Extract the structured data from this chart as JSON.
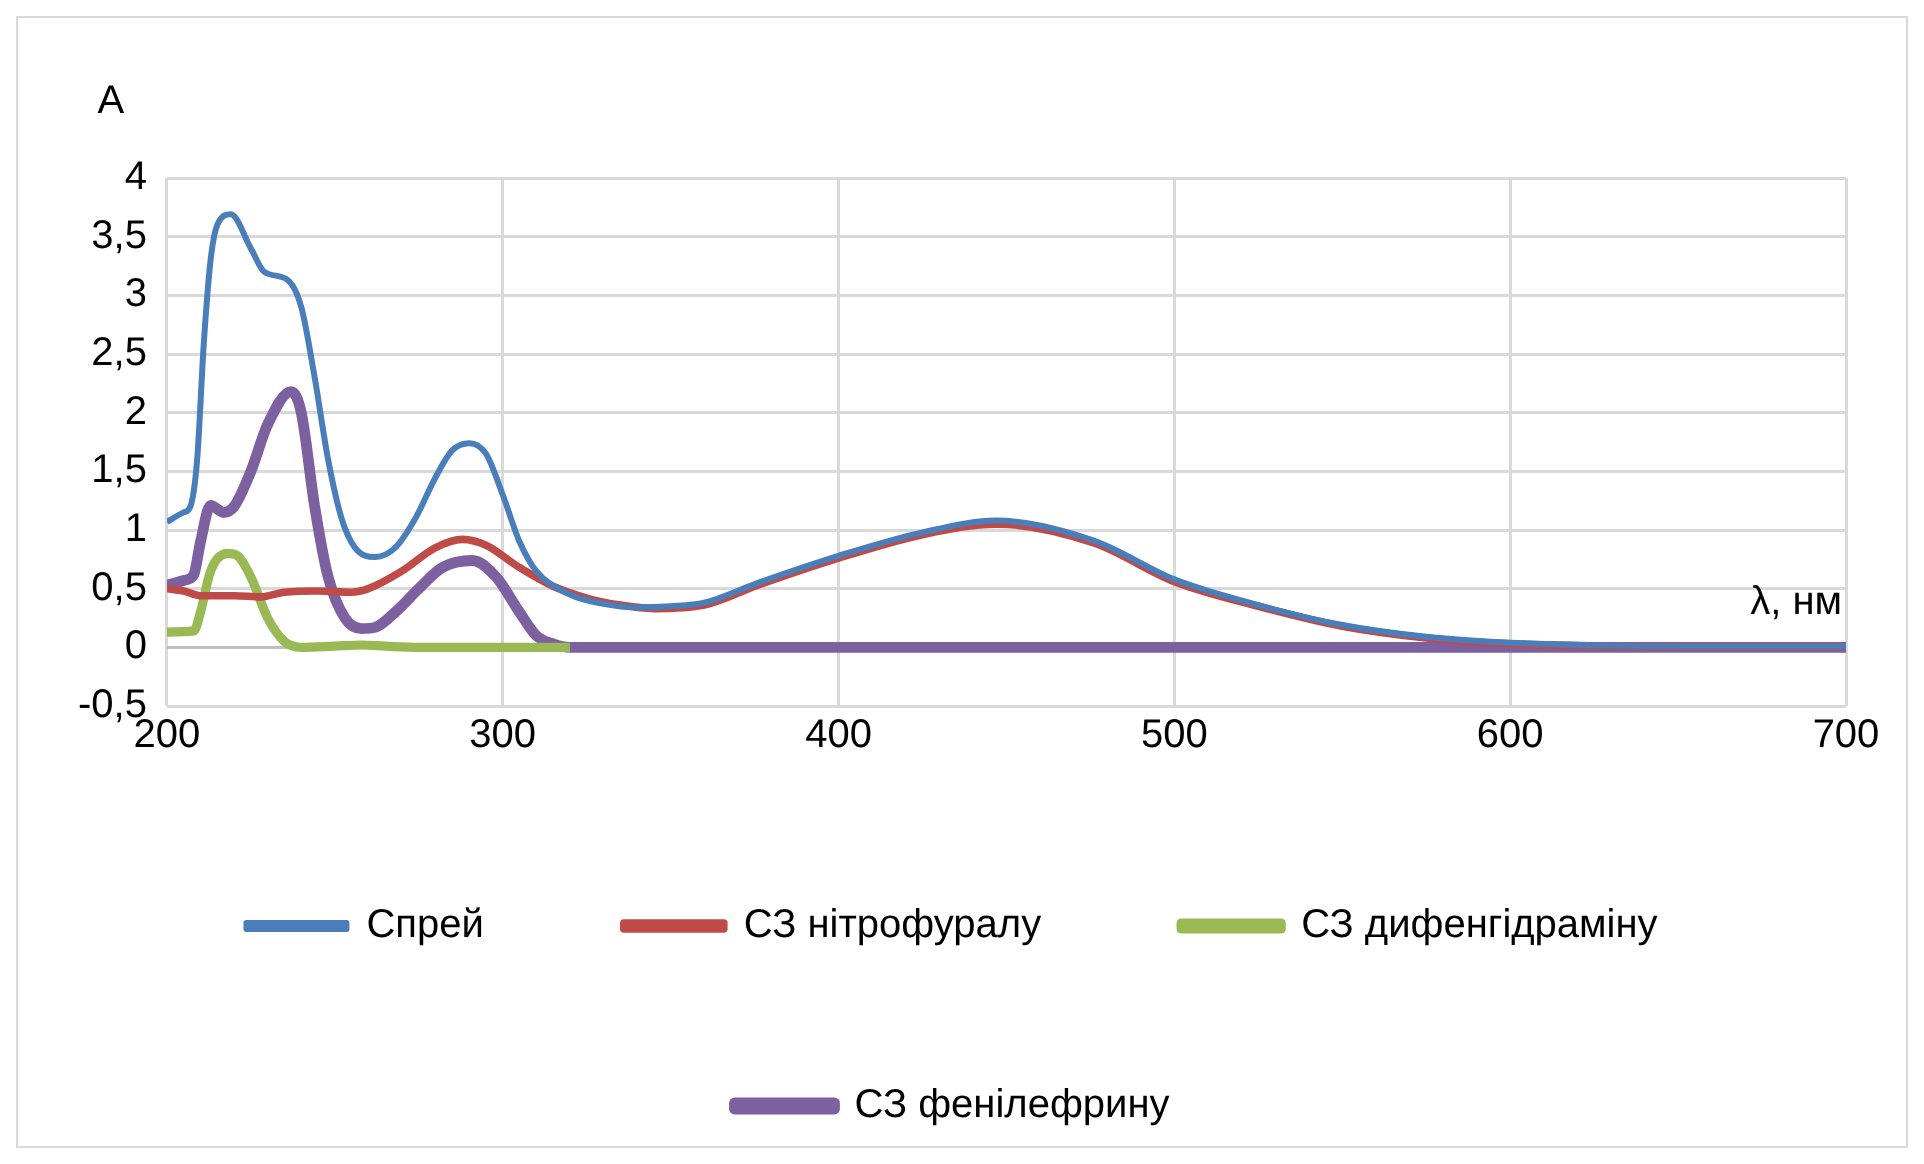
{
  "chart_data": {
    "type": "line",
    "xlabel": "λ, нм",
    "ylabel": "A",
    "xlim": [
      200,
      700
    ],
    "xticks": [
      200,
      300,
      400,
      500,
      600,
      700
    ],
    "ylim": [
      -0.5,
      4
    ],
    "yticks": [
      {
        "value": -0.5,
        "label": "-0,5"
      },
      0,
      {
        "value": 0.5,
        "label": "0,5"
      },
      1,
      {
        "value": 1.5,
        "label": "1,5"
      },
      2,
      {
        "value": 2.5,
        "label": "2,5"
      },
      3,
      {
        "value": 3.5,
        "label": "3,5"
      },
      4
    ],
    "grid": true,
    "legend": "bottom",
    "marker": "none",
    "line_style": "solid",
    "series": [
      {
        "name": "Спрей",
        "color": "#4a7ebb",
        "x": [
          200,
          205,
          207,
          209,
          211,
          213,
          215,
          219,
          225,
          229,
          236,
          240,
          244,
          248,
          252,
          256,
          262,
          268,
          274,
          280,
          285,
          290,
          295,
          300,
          305,
          310,
          320,
          330,
          340,
          350,
          360,
          376,
          400,
          425,
          447,
          476,
          500,
          525,
          550,
          575,
          600,
          650,
          700
        ],
        "values": [
          1.07,
          1.15,
          1.2,
          1.6,
          2.6,
          3.3,
          3.6,
          3.69,
          3.4,
          3.2,
          3.13,
          2.9,
          2.3,
          1.6,
          1.1,
          0.85,
          0.77,
          0.85,
          1.1,
          1.45,
          1.68,
          1.74,
          1.65,
          1.3,
          0.9,
          0.65,
          0.45,
          0.37,
          0.34,
          0.35,
          0.38,
          0.55,
          0.78,
          0.98,
          1.08,
          0.91,
          0.58,
          0.36,
          0.19,
          0.09,
          0.04,
          0.01,
          0.01
        ]
      },
      {
        "name": "СЗ нітрофуралу",
        "color": "#be4b48",
        "x": [
          200,
          205,
          210,
          220,
          228,
          235,
          245,
          255,
          260,
          270,
          280,
          288,
          295,
          305,
          315,
          325,
          335,
          345,
          360,
          376,
          400,
          425,
          447,
          476,
          500,
          525,
          550,
          575,
          600,
          650,
          700
        ],
        "values": [
          0.5,
          0.48,
          0.44,
          0.44,
          0.43,
          0.47,
          0.48,
          0.47,
          0.5,
          0.65,
          0.85,
          0.92,
          0.87,
          0.68,
          0.52,
          0.42,
          0.36,
          0.33,
          0.36,
          0.53,
          0.76,
          0.96,
          1.05,
          0.89,
          0.56,
          0.35,
          0.18,
          0.08,
          0.03,
          0.01,
          0.01
        ]
      },
      {
        "name": "СЗ дифенгідраміну",
        "color": "#98b954",
        "x": [
          200,
          208,
          210,
          213,
          218,
          221,
          225,
          230,
          235,
          240,
          250,
          258,
          265,
          275,
          300,
          320
        ],
        "values": [
          0.13,
          0.14,
          0.3,
          0.65,
          0.8,
          0.78,
          0.6,
          0.25,
          0.05,
          0,
          0.01,
          0.02,
          0.01,
          0,
          0,
          0
        ]
      },
      {
        "name": "СЗ фенілефрину",
        "color": "#7d60a0",
        "x": [
          200,
          205,
          208,
          210,
          213,
          217,
          220,
          225,
          230,
          237,
          240,
          244,
          248,
          253,
          258,
          262,
          268,
          275,
          282,
          291,
          298,
          305,
          310,
          315,
          320,
          400,
          500,
          600,
          700
        ],
        "values": [
          0.53,
          0.57,
          0.62,
          0.9,
          1.21,
          1.15,
          1.2,
          1.5,
          1.9,
          2.18,
          2.0,
          1.2,
          0.6,
          0.25,
          0.16,
          0.17,
          0.3,
          0.5,
          0.68,
          0.74,
          0.6,
          0.3,
          0.1,
          0.03,
          0,
          0,
          0,
          0,
          0
        ]
      }
    ]
  }
}
